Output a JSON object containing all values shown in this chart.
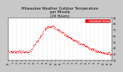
{
  "title": "Milwaukee Weather Outdoor Temperature\nper Minute\n(24 Hours)",
  "title_fontsize": 3.8,
  "background_color": "#c8c8c8",
  "plot_bg_color": "#ffffff",
  "dot_color": "#ff0000",
  "dot_size": 0.4,
  "ylim": [
    20,
    90
  ],
  "xlim": [
    0,
    1440
  ],
  "yticks": [
    20,
    30,
    40,
    50,
    60,
    70,
    80,
    90
  ],
  "ytick_labels": [
    "20",
    "30",
    "40",
    "50",
    "60",
    "70",
    "80",
    "90"
  ],
  "xtick_positions": [
    0,
    60,
    120,
    180,
    240,
    300,
    360,
    420,
    480,
    540,
    600,
    660,
    720,
    780,
    840,
    900,
    960,
    1020,
    1080,
    1140,
    1200,
    1260,
    1320,
    1380,
    1440
  ],
  "xtick_labels": [
    "12",
    "1",
    "2",
    "3",
    "4",
    "5",
    "6",
    "7",
    "8",
    "9",
    "10",
    "11",
    "12",
    "1",
    "2",
    "3",
    "4",
    "5",
    "6",
    "7",
    "8",
    "9",
    "10",
    "11",
    "12"
  ],
  "legend_label": "Outdoor Temp",
  "legend_color": "#ff0000",
  "vline_color": "#888888",
  "tick_fontsize": 2.5,
  "legend_fontsize": 3.0
}
